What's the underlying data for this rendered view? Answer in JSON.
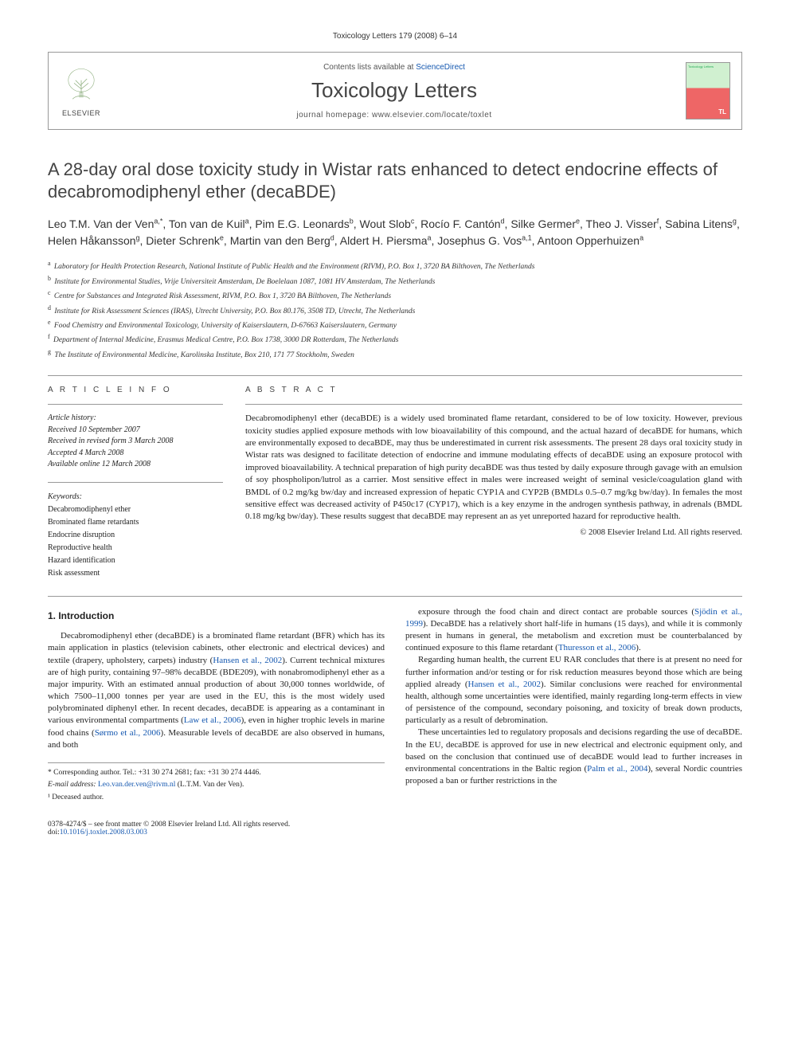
{
  "header": {
    "running_head": "Toxicology Letters 179 (2008) 6–14",
    "contents_prefix": "Contents lists available at ",
    "contents_link": "ScienceDirect",
    "journal_name": "Toxicology Letters",
    "homepage_prefix": "journal homepage: ",
    "homepage_url": "www.elsevier.com/locate/toxlet",
    "publisher_name": "ELSEVIER",
    "cover_tl": "TL",
    "cover_top": "Toxicology Letters"
  },
  "article": {
    "title": "A 28-day oral dose toxicity study in Wistar rats enhanced to detect endocrine effects of decabromodiphenyl ether (decaBDE)",
    "authors_html": "Leo T.M. Van der Ven<sup>a,*</sup>, Ton van de Kuil<sup>a</sup>, Pim E.G. Leonards<sup>b</sup>, Wout Slob<sup>c</sup>, Rocío F. Cantón<sup>d</sup>, Silke Germer<sup>e</sup>, Theo J. Visser<sup>f</sup>, Sabina Litens<sup>g</sup>, Helen Håkansson<sup>g</sup>, Dieter Schrenk<sup>e</sup>, Martin van den Berg<sup>d</sup>, Aldert H. Piersma<sup>a</sup>, Josephus G. Vos<sup>a,1</sup>, Antoon Opperhuizen<sup>a</sup>",
    "affiliations": [
      {
        "key": "a",
        "text": "Laboratory for Health Protection Research, National Institute of Public Health and the Environment (RIVM), P.O. Box 1, 3720 BA Bilthoven, The Netherlands"
      },
      {
        "key": "b",
        "text": "Institute for Environmental Studies, Vrije Universiteit Amsterdam, De Boelelaan 1087, 1081 HV Amsterdam, The Netherlands"
      },
      {
        "key": "c",
        "text": "Centre for Substances and Integrated Risk Assessment, RIVM, P.O. Box 1, 3720 BA Bilthoven, The Netherlands"
      },
      {
        "key": "d",
        "text": "Institute for Risk Assessment Sciences (IRAS), Utrecht University, P.O. Box 80.176, 3508 TD, Utrecht, The Netherlands"
      },
      {
        "key": "e",
        "text": "Food Chemistry and Environmental Toxicology, University of Kaiserslautern, D-67663 Kaiserslautern, Germany"
      },
      {
        "key": "f",
        "text": "Department of Internal Medicine, Erasmus Medical Centre, P.O. Box 1738, 3000 DR Rotterdam, The Netherlands"
      },
      {
        "key": "g",
        "text": "The Institute of Environmental Medicine, Karolinska Institute, Box 210, 171 77 Stockholm, Sweden"
      }
    ]
  },
  "info": {
    "head": "A R T I C L E   I N F O",
    "history_label": "Article history:",
    "history": [
      "Received 10 September 2007",
      "Received in revised form 3 March 2008",
      "Accepted 4 March 2008",
      "Available online 12 March 2008"
    ],
    "keywords_label": "Keywords:",
    "keywords": [
      "Decabromodiphenyl ether",
      "Brominated flame retardants",
      "Endocrine disruption",
      "Reproductive health",
      "Hazard identification",
      "Risk assessment"
    ]
  },
  "abstract": {
    "head": "A B S T R A C T",
    "text": "Decabromodiphenyl ether (decaBDE) is a widely used brominated flame retardant, considered to be of low toxicity. However, previous toxicity studies applied exposure methods with low bioavailability of this compound, and the actual hazard of decaBDE for humans, which are environmentally exposed to decaBDE, may thus be underestimated in current risk assessments. The present 28 days oral toxicity study in Wistar rats was designed to facilitate detection of endocrine and immune modulating effects of decaBDE using an exposure protocol with improved bioavailability. A technical preparation of high purity decaBDE was thus tested by daily exposure through gavage with an emulsion of soy phospholipon/lutrol as a carrier. Most sensitive effect in males were increased weight of seminal vesicle/coagulation gland with BMDL of 0.2 mg/kg bw/day and increased expression of hepatic CYP1A and CYP2B (BMDLs 0.5–0.7 mg/kg bw/day). In females the most sensitive effect was decreased activity of P450c17 (CYP17), which is a key enzyme in the androgen synthesis pathway, in adrenals (BMDL 0.18 mg/kg bw/day). These results suggest that decaBDE may represent an as yet unreported hazard for reproductive health.",
    "copyright": "© 2008 Elsevier Ireland Ltd. All rights reserved."
  },
  "body": {
    "section_head": "1. Introduction",
    "p1_a": "Decabromodiphenyl ether (decaBDE) is a brominated flame retardant (BFR) which has its main application in plastics (television cabinets, other electronic and electrical devices) and textile (drapery, upholstery, carpets) industry (",
    "p1_cite1": "Hansen et al., 2002",
    "p1_b": "). Current technical mixtures are of high purity, containing 97–98% decaBDE (BDE209), with nonabromodiphenyl ether as a major impurity. With an estimated annual production of about 30,000 tonnes worldwide, of which 7500–11,000 tonnes per year are used in the EU, this is the most widely used polybrominated diphenyl ether. In recent decades, decaBDE is appearing as a contaminant in various environmental compartments (",
    "p1_cite2": "Law et al., 2006",
    "p1_c": "), even in higher trophic levels in marine food chains (",
    "p1_cite3": "Sørmo et al., 2006",
    "p1_d": "). Measurable levels of decaBDE are also observed in humans, and both",
    "p2_a": "exposure through the food chain and direct contact are probable sources (",
    "p2_cite1": "Sjödin et al., 1999",
    "p2_b": "). DecaBDE has a relatively short half-life in humans (15 days), and while it is commonly present in humans in general, the metabolism and excretion must be counterbalanced by continued exposure to this flame retardant (",
    "p2_cite2": "Thuresson et al., 2006",
    "p2_c": ").",
    "p3_a": "Regarding human health, the current EU RAR concludes that there is at present no need for further information and/or testing or for risk reduction measures beyond those which are being applied already (",
    "p3_cite1": "Hansen et al., 2002",
    "p3_b": "). Similar conclusions were reached for environmental health, although some uncertainties were identified, mainly regarding long-term effects in view of persistence of the compound, secondary poisoning, and toxicity of break down products, particularly as a result of debromination.",
    "p4_a": "These uncertainties led to regulatory proposals and decisions regarding the use of decaBDE. In the EU, decaBDE is approved for use in new electrical and electronic equipment only, and based on the conclusion that continued use of decaBDE would lead to further increases in environmental concentrations in the Baltic region (",
    "p4_cite1": "Palm et al., 2004",
    "p4_b": "), several Nordic countries proposed a ban or further restrictions in the"
  },
  "footnotes": {
    "corr": "* Corresponding author. Tel.: +31 30 274 2681; fax: +31 30 274 4446.",
    "email_label": "E-mail address: ",
    "email": "Leo.van.der.ven@rivm.nl",
    "email_suffix": " (L.T.M. Van der Ven).",
    "deceased": "¹ Deceased author."
  },
  "footer": {
    "left_line1": "0378-4274/$ – see front matter © 2008 Elsevier Ireland Ltd. All rights reserved.",
    "doi_prefix": "doi:",
    "doi": "10.1016/j.toxlet.2008.03.003"
  },
  "colors": {
    "link": "#1558b0",
    "text": "#222222",
    "rule": "#999999"
  }
}
